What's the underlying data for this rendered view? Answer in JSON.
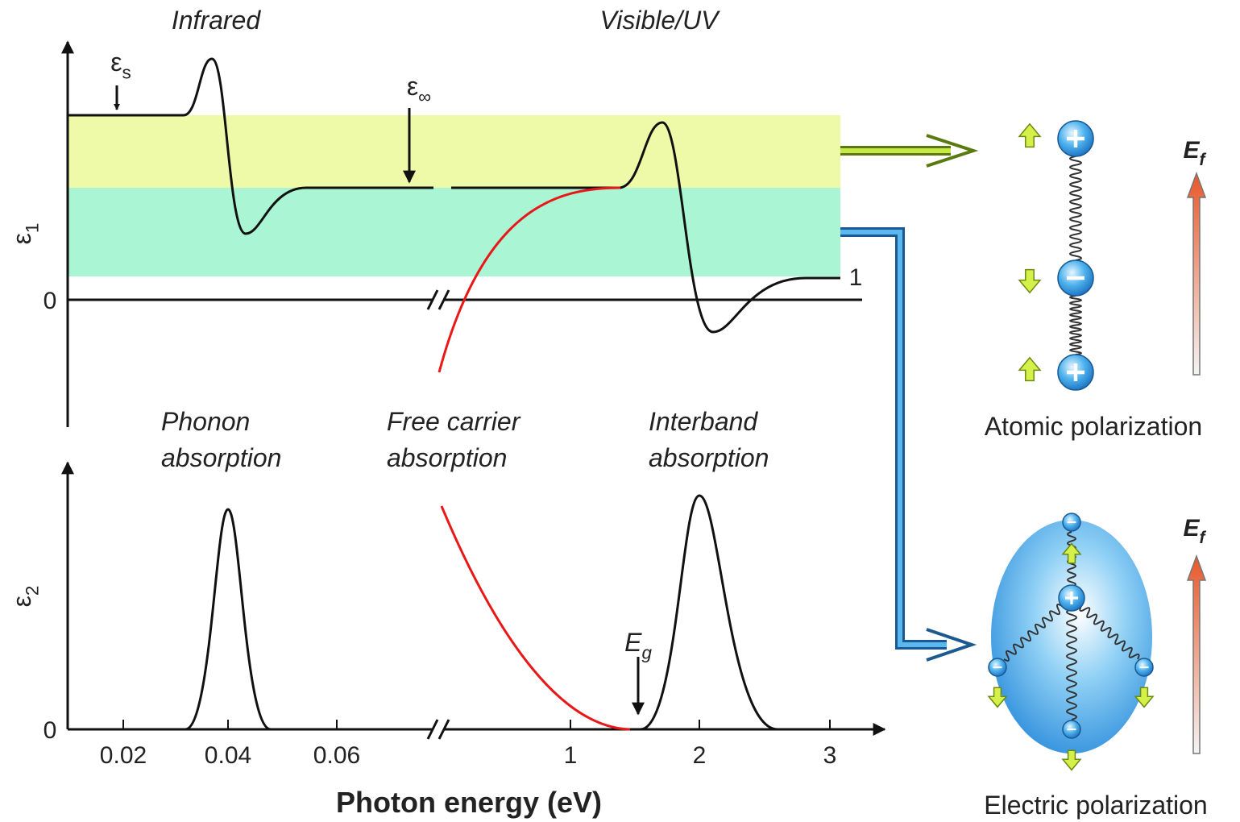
{
  "top_panel": {
    "regions": [
      "Infrared",
      "Visible/UV"
    ],
    "y_axis": {
      "symbol": "ε",
      "subscript": "1"
    },
    "zero": "0",
    "one": "1",
    "eps_s": {
      "symbol": "ε",
      "subscript": "s"
    },
    "eps_inf": {
      "symbol": "ε",
      "subscript": "∞"
    }
  },
  "bottom_panel": {
    "y_axis": {
      "symbol": "ε",
      "subscript": "2"
    },
    "zero": "0",
    "processes": [
      [
        "Phonon",
        "absorption"
      ],
      [
        "Free carrier",
        "absorption"
      ],
      [
        "Interband",
        "absorption"
      ]
    ],
    "gap": {
      "symbol": "E",
      "subscript": "g"
    },
    "x_ticks": [
      "0.02",
      "0.04",
      "0.06",
      "1",
      "2",
      "3"
    ],
    "x_axis_label": "Photon energy (eV)"
  },
  "right_panel": {
    "atomic": {
      "label": "Atomic polarization",
      "field": {
        "symbol": "E",
        "subscript": "f"
      }
    },
    "electric": {
      "label": "Electric polarization",
      "field": {
        "symbol": "E",
        "subscript": "f"
      }
    }
  }
}
